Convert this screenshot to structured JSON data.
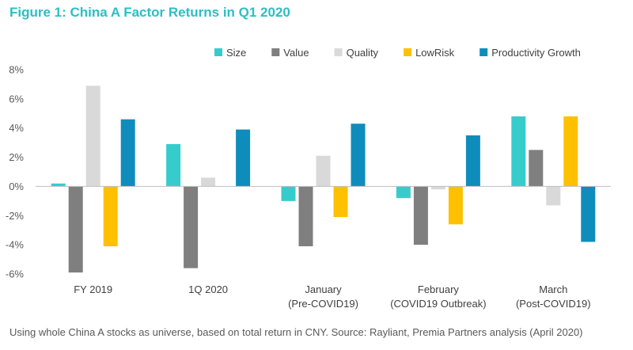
{
  "title": "Figure 1: China A Factor Returns in Q1 2020",
  "footnote": "Using whole China A stocks as universe, based on total return in CNY. Source: Rayliant, Premia Partners analysis (April 2020)",
  "chart_data": {
    "type": "bar",
    "categories": [
      [
        "FY 2019"
      ],
      [
        "1Q 2020"
      ],
      [
        "January",
        "(Pre-COVID19)"
      ],
      [
        "February",
        "(COVID19 Outbreak)"
      ],
      [
        "March",
        "(Post-COVID19)"
      ]
    ],
    "series": [
      {
        "name": "Size",
        "color": "#36cccc",
        "values": [
          0.2,
          2.9,
          -1.0,
          -0.8,
          4.8
        ]
      },
      {
        "name": "Value",
        "color": "#7f7f7f",
        "values": [
          -5.9,
          -5.6,
          -4.1,
          -4.0,
          2.5
        ]
      },
      {
        "name": "Quality",
        "color": "#d9d9d9",
        "values": [
          6.9,
          0.6,
          2.1,
          -0.2,
          -1.3
        ]
      },
      {
        "name": "LowRisk",
        "color": "#ffc000",
        "values": [
          -4.1,
          0.0,
          -2.1,
          -2.6,
          4.8
        ]
      },
      {
        "name": "Productivity Growth",
        "color": "#0e8dbd",
        "values": [
          4.6,
          3.9,
          4.3,
          3.5,
          -3.8
        ]
      }
    ],
    "ylim": [
      -6,
      8
    ],
    "yticks": [
      8,
      6,
      4,
      2,
      0,
      -2,
      -4,
      -6
    ],
    "ytick_format": "percent",
    "grid": false,
    "legend": "top-right"
  }
}
